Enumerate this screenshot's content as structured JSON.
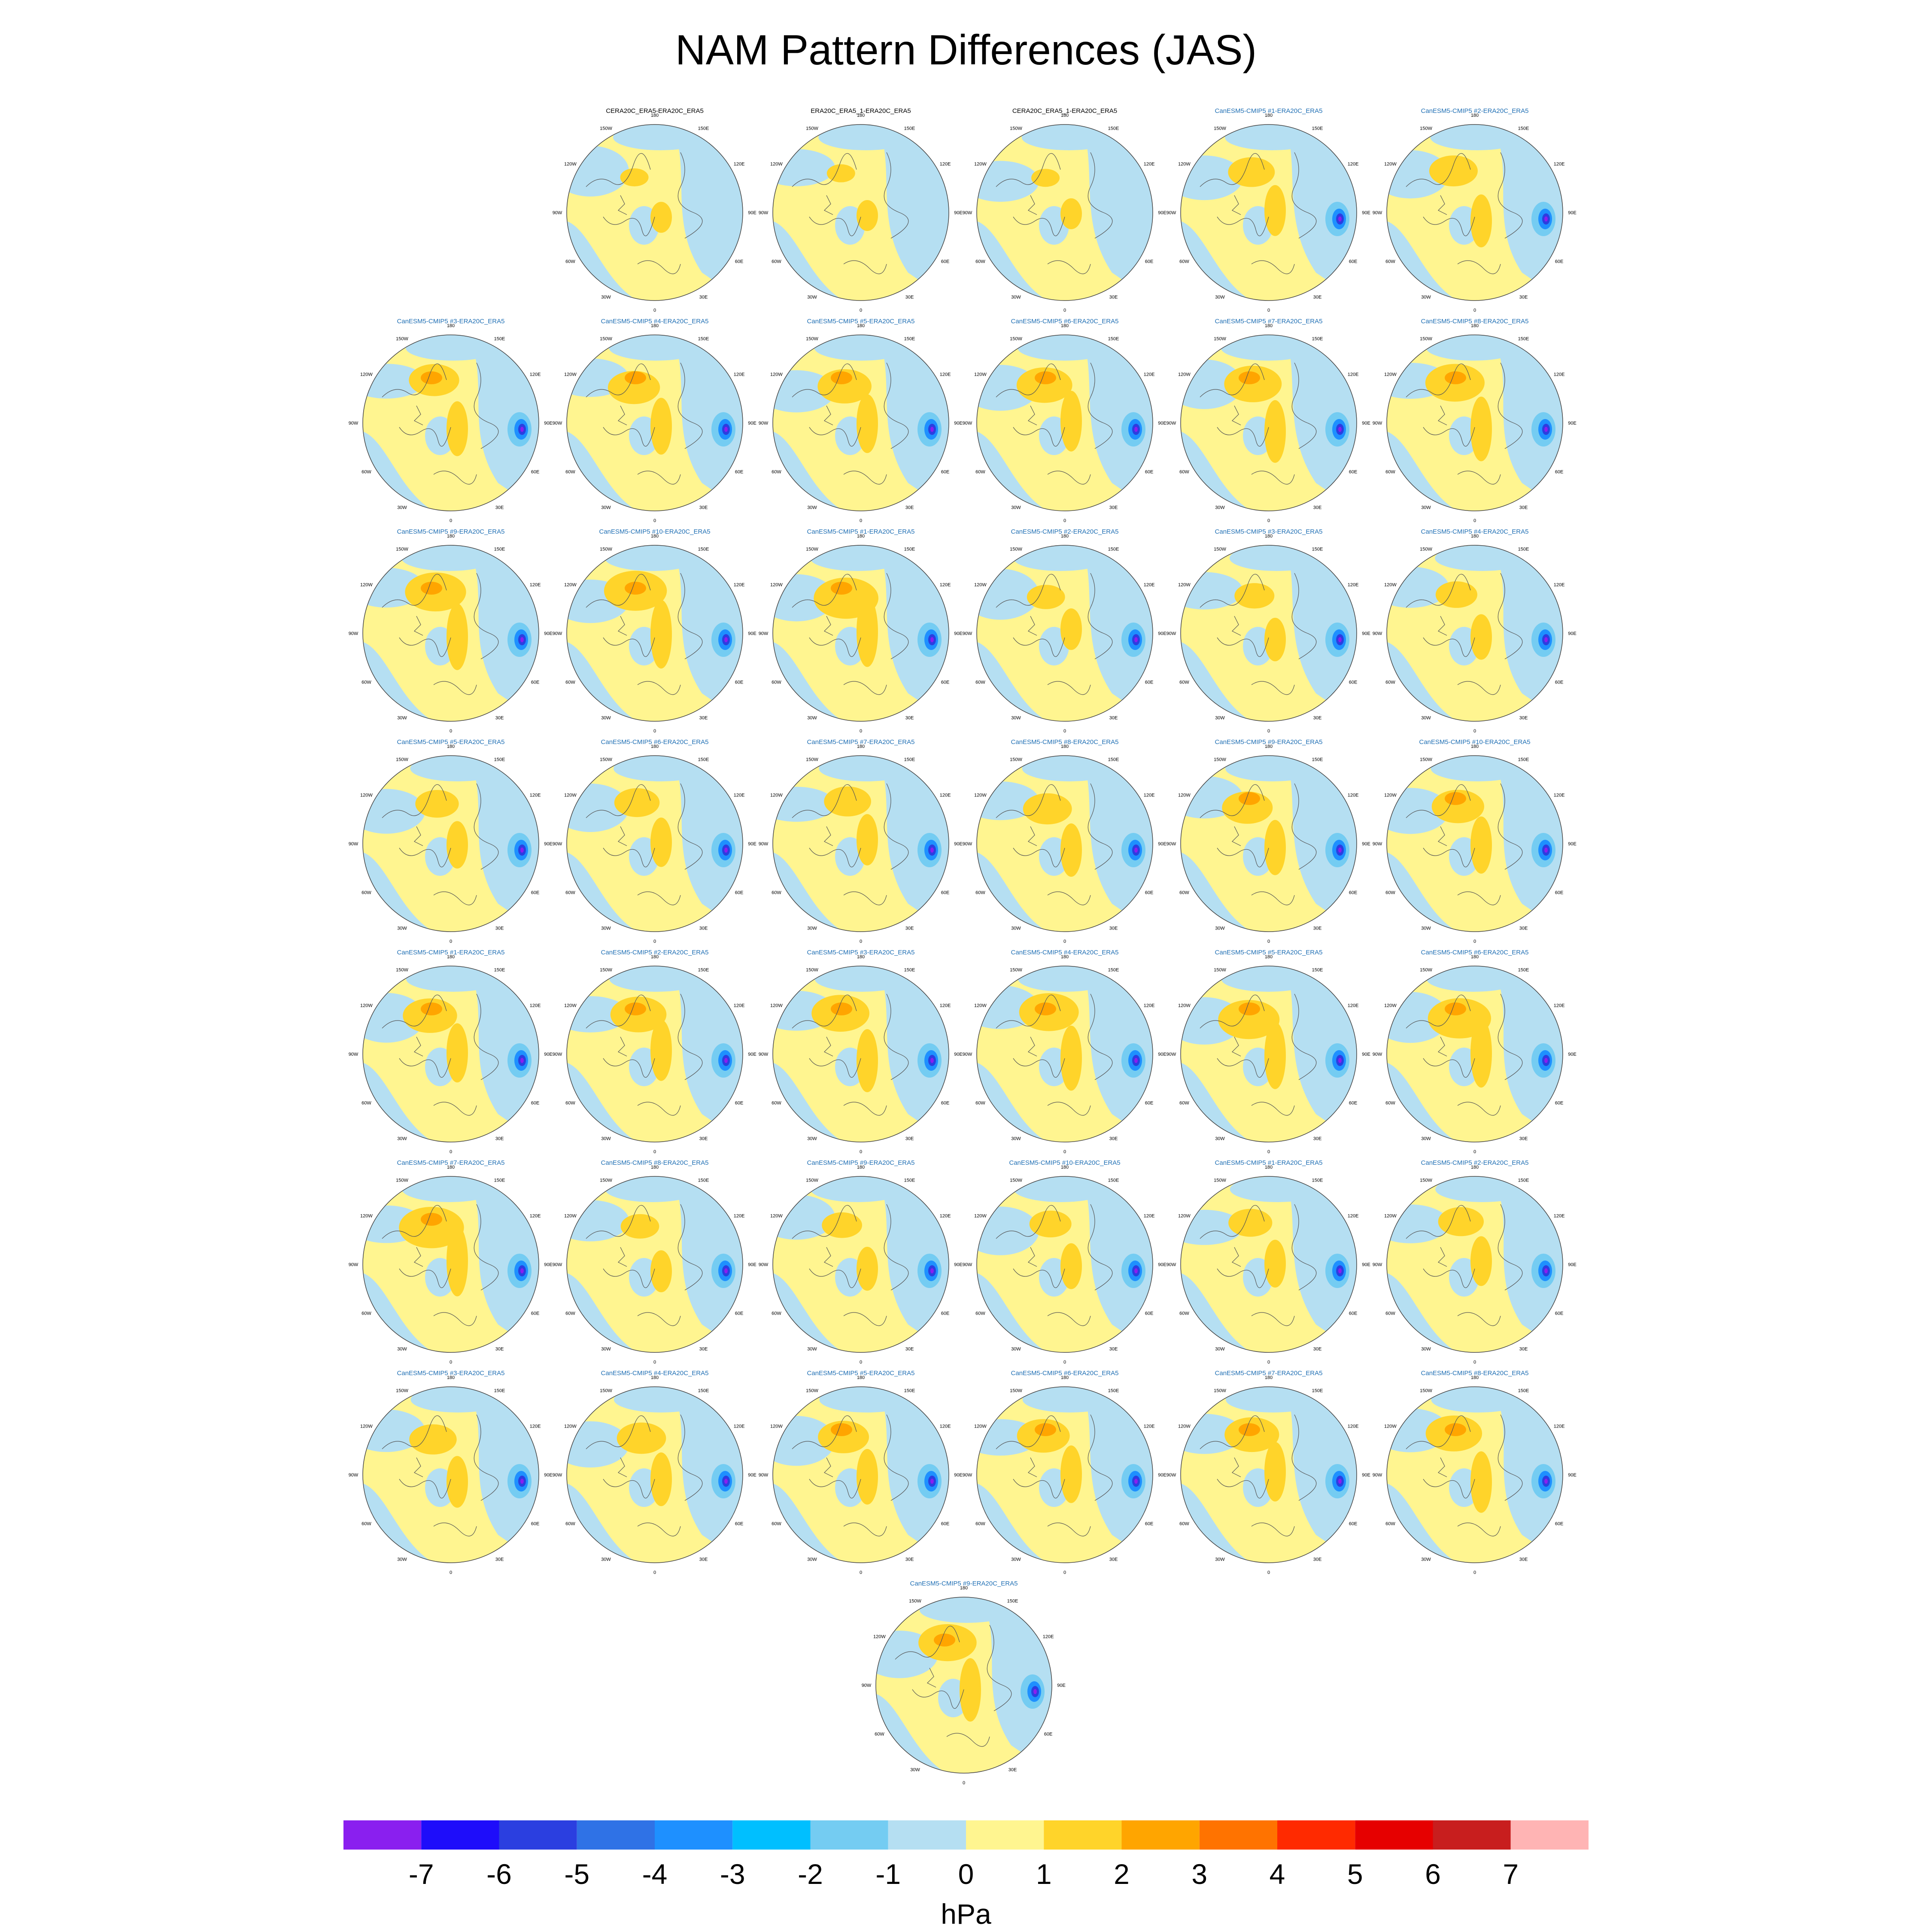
{
  "title": "NAM Pattern Differences (JAS)",
  "chart_data": {
    "type": "heatmap",
    "title": "NAM Pattern Differences (JAS)",
    "projection": "north polar stereographic",
    "panels": [
      {
        "title": "CERA20C_ERA5-ERA20C_ERA5",
        "title_color": "#000000"
      },
      {
        "title": "ERA20C_ERA5_1-ERA20C_ERA5",
        "title_color": "#000000"
      },
      {
        "title": "CERA20C_ERA5_1-ERA20C_ERA5",
        "title_color": "#000000"
      },
      {
        "title": "CanESM5-CMIP5 #1-ERA20C_ERA5",
        "title_color": "#1f6fb4"
      },
      {
        "title": "CanESM5-CMIP5 #2-ERA20C_ERA5",
        "title_color": "#1f6fb4"
      },
      {
        "title": "CanESM5-CMIP5 #3-ERA20C_ERA5",
        "title_color": "#1f6fb4"
      },
      {
        "title": "CanESM5-CMIP5 #4-ERA20C_ERA5",
        "title_color": "#1f6fb4"
      },
      {
        "title": "CanESM5-CMIP5 #5-ERA20C_ERA5",
        "title_color": "#1f6fb4"
      },
      {
        "title": "CanESM5-CMIP5 #6-ERA20C_ERA5",
        "title_color": "#1f6fb4"
      },
      {
        "title": "CanESM5-CMIP5 #7-ERA20C_ERA5",
        "title_color": "#1f6fb4"
      },
      {
        "title": "CanESM5-CMIP5 #8-ERA20C_ERA5",
        "title_color": "#1f6fb4"
      },
      {
        "title": "CanESM5-CMIP5 #9-ERA20C_ERA5",
        "title_color": "#1f6fb4"
      },
      {
        "title": "CanESM5-CMIP5 #10-ERA20C_ERA5",
        "title_color": "#1f6fb4"
      },
      {
        "title": "CanESM5-CMIP5 #1-ERA20C_ERA5",
        "title_color": "#1f6fb4"
      },
      {
        "title": "CanESM5-CMIP5 #2-ERA20C_ERA5",
        "title_color": "#1f6fb4"
      },
      {
        "title": "CanESM5-CMIP5 #3-ERA20C_ERA5",
        "title_color": "#1f6fb4"
      },
      {
        "title": "CanESM5-CMIP5 #4-ERA20C_ERA5",
        "title_color": "#1f6fb4"
      },
      {
        "title": "CanESM5-CMIP5 #5-ERA20C_ERA5",
        "title_color": "#1f6fb4"
      },
      {
        "title": "CanESM5-CMIP5 #6-ERA20C_ERA5",
        "title_color": "#1f6fb4"
      },
      {
        "title": "CanESM5-CMIP5 #7-ERA20C_ERA5",
        "title_color": "#1f6fb4"
      },
      {
        "title": "CanESM5-CMIP5 #8-ERA20C_ERA5",
        "title_color": "#1f6fb4"
      },
      {
        "title": "CanESM5-CMIP5 #9-ERA20C_ERA5",
        "title_color": "#1f6fb4"
      },
      {
        "title": "CanESM5-CMIP5 #10-ERA20C_ERA5",
        "title_color": "#1f6fb4"
      },
      {
        "title": "CanESM5-CMIP5 #1-ERA20C_ERA5",
        "title_color": "#1f6fb4"
      },
      {
        "title": "CanESM5-CMIP5 #2-ERA20C_ERA5",
        "title_color": "#1f6fb4"
      },
      {
        "title": "CanESM5-CMIP5 #3-ERA20C_ERA5",
        "title_color": "#1f6fb4"
      },
      {
        "title": "CanESM5-CMIP5 #4-ERA20C_ERA5",
        "title_color": "#1f6fb4"
      },
      {
        "title": "CanESM5-CMIP5 #5-ERA20C_ERA5",
        "title_color": "#1f6fb4"
      },
      {
        "title": "CanESM5-CMIP5 #6-ERA20C_ERA5",
        "title_color": "#1f6fb4"
      },
      {
        "title": "CanESM5-CMIP5 #7-ERA20C_ERA5",
        "title_color": "#1f6fb4"
      },
      {
        "title": "CanESM5-CMIP5 #8-ERA20C_ERA5",
        "title_color": "#1f6fb4"
      },
      {
        "title": "CanESM5-CMIP5 #9-ERA20C_ERA5",
        "title_color": "#1f6fb4"
      },
      {
        "title": "CanESM5-CMIP5 #10-ERA20C_ERA5",
        "title_color": "#1f6fb4"
      },
      {
        "title": "CanESM5-CMIP5 #1-ERA20C_ERA5",
        "title_color": "#1f6fb4"
      },
      {
        "title": "CanESM5-CMIP5 #2-ERA20C_ERA5",
        "title_color": "#1f6fb4"
      },
      {
        "title": "CanESM5-CMIP5 #3-ERA20C_ERA5",
        "title_color": "#1f6fb4"
      },
      {
        "title": "CanESM5-CMIP5 #4-ERA20C_ERA5",
        "title_color": "#1f6fb4"
      },
      {
        "title": "CanESM5-CMIP5 #5-ERA20C_ERA5",
        "title_color": "#1f6fb4"
      },
      {
        "title": "CanESM5-CMIP5 #6-ERA20C_ERA5",
        "title_color": "#1f6fb4"
      },
      {
        "title": "CanESM5-CMIP5 #7-ERA20C_ERA5",
        "title_color": "#1f6fb4"
      },
      {
        "title": "CanESM5-CMIP5 #8-ERA20C_ERA5",
        "title_color": "#1f6fb4"
      },
      {
        "title": "CanESM5-CMIP5 #9-ERA20C_ERA5",
        "title_color": "#1f6fb4"
      }
    ],
    "longitude_labels": [
      "180",
      "150E",
      "120E",
      "90E",
      "60E",
      "30E",
      "0",
      "30W",
      "60W",
      "90W",
      "120W",
      "150W"
    ],
    "colorbar": {
      "units": "hPa",
      "tick_labels": [
        "-7",
        "-6",
        "-5",
        "-4",
        "-3",
        "-2",
        "-1",
        "0",
        "1",
        "2",
        "3",
        "4",
        "5",
        "6",
        "7"
      ],
      "colors": [
        "#8a1fef",
        "#1e0dfa",
        "#2b3fe0",
        "#2f72e6",
        "#1e90ff",
        "#00bfff",
        "#74ccf2",
        "#b5dff2",
        "#fff590",
        "#ffd42a",
        "#ffa500",
        "#ff7300",
        "#ff2a00",
        "#e60000",
        "#c81e1e",
        "#ffb4b4"
      ]
    }
  }
}
